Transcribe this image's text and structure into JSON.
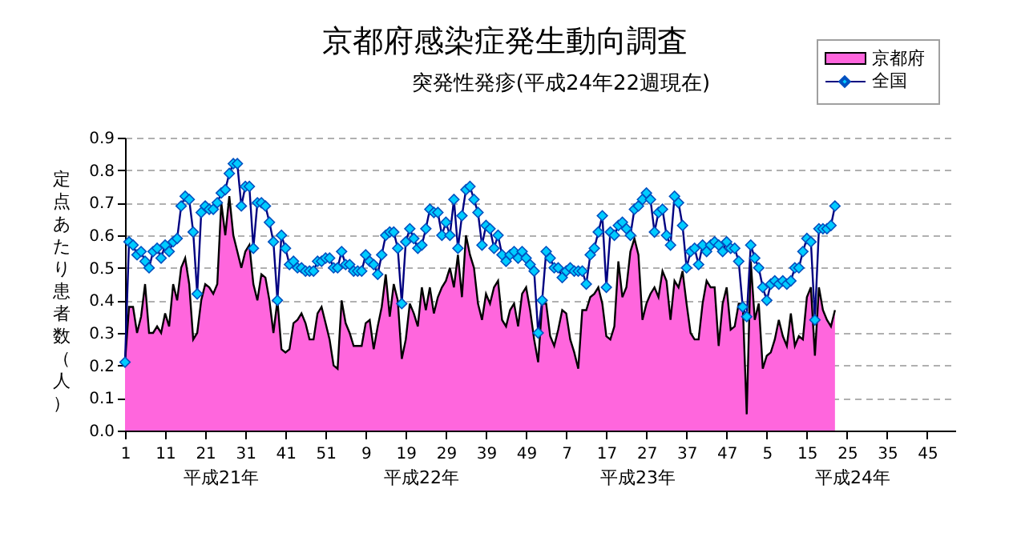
{
  "chart_data": {
    "type": "area",
    "title": "京都府感染症発生動向調査",
    "subtitle": "突発性発疹(平成24年22週現在)",
    "ylabel": "定点あたり患者数（人）",
    "categories": [
      "1",
      null,
      null,
      null,
      null,
      null,
      null,
      null,
      null,
      null,
      "11",
      null,
      null,
      null,
      null,
      null,
      null,
      null,
      null,
      null,
      "21",
      null,
      null,
      null,
      null,
      null,
      null,
      null,
      null,
      null,
      "31",
      null,
      null,
      null,
      null,
      null,
      null,
      null,
      null,
      null,
      "41",
      null,
      null,
      null,
      null,
      null,
      null,
      null,
      null,
      null,
      "51",
      null,
      null,
      null,
      null,
      null,
      null,
      null,
      null,
      null,
      "9",
      null,
      null,
      null,
      null,
      null,
      null,
      null,
      null,
      null,
      "19",
      null,
      null,
      null,
      null,
      null,
      null,
      null,
      null,
      null,
      "29",
      null,
      null,
      null,
      null,
      null,
      null,
      null,
      null,
      null,
      "39",
      null,
      null,
      null,
      null,
      null,
      null,
      null,
      null,
      null,
      "49",
      null,
      null,
      null,
      null,
      null,
      null,
      null,
      null,
      null,
      "7",
      null,
      null,
      null,
      null,
      null,
      null,
      null,
      null,
      null,
      "17",
      null,
      null,
      null,
      null,
      null,
      null,
      null,
      null,
      null,
      "27",
      null,
      null,
      null,
      null,
      null,
      null,
      null,
      null,
      null,
      "37",
      null,
      null,
      null,
      null,
      null,
      null,
      null,
      null,
      null,
      "47",
      null,
      null,
      null,
      null,
      null,
      null,
      null,
      null,
      null,
      "5",
      null,
      null,
      null,
      null,
      null,
      null,
      null,
      null,
      null,
      "15",
      null,
      null,
      null,
      null,
      null,
      null,
      null,
      null,
      null,
      "25",
      null,
      null,
      null,
      null,
      null,
      null,
      null,
      null,
      null,
      "35",
      null,
      null,
      null,
      null,
      null,
      null,
      null,
      null,
      null,
      "45",
      null,
      null,
      null,
      null,
      null,
      null,
      null
    ],
    "series": [
      {
        "name": "京都府",
        "color": "#ff66dd",
        "values": [
          0.21,
          0.38,
          0.38,
          0.3,
          0.35,
          0.45,
          0.3,
          0.3,
          0.32,
          0.3,
          0.36,
          0.32,
          0.45,
          0.4,
          0.5,
          0.53,
          0.45,
          0.28,
          0.3,
          0.4,
          0.45,
          0.44,
          0.42,
          0.45,
          0.7,
          0.6,
          0.72,
          0.6,
          0.55,
          0.5,
          0.55,
          0.57,
          0.45,
          0.4,
          0.48,
          0.47,
          0.4,
          0.3,
          0.4,
          0.25,
          0.24,
          0.25,
          0.33,
          0.34,
          0.36,
          0.33,
          0.28,
          0.28,
          0.36,
          0.38,
          0.33,
          0.28,
          0.2,
          0.19,
          0.4,
          0.33,
          0.3,
          0.26,
          0.26,
          0.26,
          0.33,
          0.34,
          0.25,
          0.32,
          0.38,
          0.48,
          0.35,
          0.45,
          0.4,
          0.22,
          0.28,
          0.39,
          0.36,
          0.32,
          0.44,
          0.37,
          0.44,
          0.36,
          0.41,
          0.44,
          0.46,
          0.5,
          0.44,
          0.54,
          0.41,
          0.6,
          0.54,
          0.5,
          0.39,
          0.34,
          0.42,
          0.39,
          0.44,
          0.46,
          0.34,
          0.32,
          0.37,
          0.39,
          0.32,
          0.42,
          0.44,
          0.37,
          0.28,
          0.21,
          0.39,
          0.39,
          0.29,
          0.26,
          0.31,
          0.37,
          0.36,
          0.28,
          0.24,
          0.19,
          0.37,
          0.37,
          0.41,
          0.42,
          0.44,
          0.39,
          0.29,
          0.28,
          0.32,
          0.52,
          0.41,
          0.44,
          0.55,
          0.59,
          0.54,
          0.34,
          0.39,
          0.42,
          0.44,
          0.41,
          0.49,
          0.46,
          0.34,
          0.46,
          0.44,
          0.49,
          0.39,
          0.3,
          0.28,
          0.28,
          0.39,
          0.46,
          0.44,
          0.44,
          0.26,
          0.39,
          0.44,
          0.31,
          0.32,
          0.39,
          0.39,
          0.05,
          0.52,
          0.34,
          0.39,
          0.19,
          0.23,
          0.24,
          0.28,
          0.34,
          0.29,
          0.26,
          0.36,
          0.26,
          0.29,
          0.28,
          0.41,
          0.44,
          0.23,
          0.44,
          0.37,
          0.34,
          0.32,
          0.37,
          null,
          null,
          null,
          null,
          null,
          null,
          null,
          null,
          null,
          null,
          null,
          null,
          null,
          null,
          null,
          null,
          null,
          null,
          null,
          null,
          null,
          null,
          null,
          null,
          null,
          null,
          null,
          null,
          null,
          null
        ]
      },
      {
        "name": "全国",
        "type": "line",
        "color": "#00ccff",
        "marker": "diamond",
        "values": [
          0.21,
          0.58,
          0.57,
          0.54,
          0.55,
          0.52,
          0.5,
          0.55,
          0.56,
          0.53,
          0.57,
          0.55,
          0.58,
          0.59,
          0.69,
          0.72,
          0.71,
          0.61,
          0.42,
          0.67,
          0.69,
          0.68,
          0.68,
          0.7,
          0.73,
          0.74,
          0.79,
          0.82,
          0.82,
          0.69,
          0.75,
          0.75,
          0.56,
          0.7,
          0.7,
          0.69,
          0.64,
          0.58,
          0.4,
          0.6,
          0.56,
          0.51,
          0.52,
          0.5,
          0.5,
          0.49,
          0.49,
          0.49,
          0.52,
          0.52,
          0.53,
          0.53,
          0.5,
          0.5,
          0.55,
          0.51,
          0.51,
          0.49,
          0.49,
          0.49,
          0.54,
          0.52,
          0.51,
          0.48,
          0.54,
          0.6,
          0.61,
          0.61,
          0.56,
          0.39,
          0.58,
          0.62,
          0.59,
          0.56,
          0.57,
          0.62,
          0.68,
          0.67,
          0.67,
          0.6,
          0.64,
          0.6,
          0.71,
          0.56,
          0.66,
          0.74,
          0.75,
          0.71,
          0.67,
          0.57,
          0.63,
          0.62,
          0.56,
          0.6,
          0.54,
          0.52,
          0.54,
          0.55,
          0.53,
          0.55,
          0.53,
          0.51,
          0.49,
          0.3,
          0.4,
          0.55,
          0.53,
          0.5,
          0.5,
          0.47,
          0.49,
          0.5,
          0.49,
          0.49,
          0.49,
          0.45,
          0.54,
          0.56,
          0.61,
          0.66,
          0.44,
          0.61,
          0.6,
          0.63,
          0.64,
          0.62,
          0.6,
          0.68,
          0.69,
          0.71,
          0.73,
          0.71,
          0.61,
          0.67,
          0.68,
          0.6,
          0.57,
          0.72,
          0.7,
          0.63,
          0.5,
          0.55,
          0.56,
          0.51,
          0.57,
          0.55,
          0.57,
          0.58,
          0.57,
          0.55,
          0.58,
          0.56,
          0.56,
          0.52,
          0.38,
          0.35,
          0.57,
          0.53,
          0.5,
          0.44,
          0.4,
          0.45,
          0.46,
          0.45,
          0.46,
          0.45,
          0.46,
          0.5,
          0.5,
          0.55,
          0.59,
          0.58,
          0.34,
          0.62,
          0.62,
          0.62,
          0.63,
          0.69,
          null,
          null,
          null,
          null,
          null,
          null,
          null,
          null,
          null,
          null,
          null,
          null,
          null,
          null,
          null,
          null,
          null,
          null,
          null,
          null,
          null,
          null,
          null,
          null,
          null,
          null,
          null,
          null,
          null,
          null
        ]
      }
    ],
    "ylim": [
      0,
      0.9
    ],
    "yticks": [
      {
        "value": 0,
        "label": "0.0"
      },
      0.1,
      0.2,
      0.3,
      0.4,
      0.5,
      0.6,
      0.7,
      0.8,
      0.9
    ],
    "grid": "y",
    "legend": "top right",
    "annotations": [
      "平成21年",
      "平成22年",
      "平成23年",
      "平成24年"
    ]
  }
}
